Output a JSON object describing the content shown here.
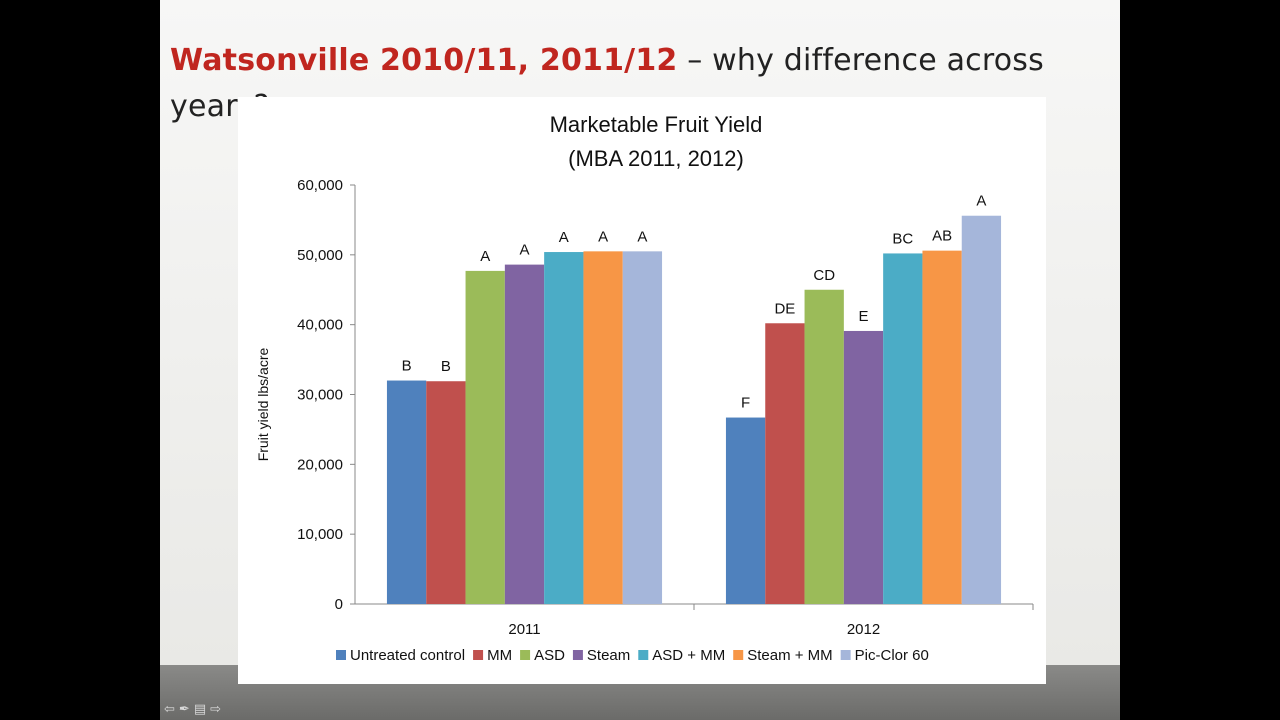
{
  "slide": {
    "title_highlight": "Watsonville 2010/11, 2011/12",
    "title_rest": " – why difference across years?"
  },
  "controls": {
    "prev_icon": "arrow-left-icon",
    "pen_icon": "pen-icon",
    "menu_icon": "menu-icon",
    "next_icon": "arrow-right-icon"
  },
  "chart_data": {
    "type": "bar",
    "title": "Marketable Fruit Yield",
    "subtitle": "(MBA 2011, 2012)",
    "ylabel": "Fruit yield lbs/acre",
    "xlabel": "",
    "ylim": [
      0,
      60000
    ],
    "yticks": [
      "0",
      "10,000",
      "20,000",
      "30,000",
      "40,000",
      "50,000",
      "60,000"
    ],
    "categories": [
      "2011",
      "2012"
    ],
    "legend_position": "bottom",
    "series": [
      {
        "name": "Untreated control",
        "color": "#4f81bd",
        "values": [
          32000,
          26700
        ],
        "labels": [
          "B",
          "F"
        ]
      },
      {
        "name": "MM",
        "color": "#c0504d",
        "values": [
          31900,
          40200
        ],
        "labels": [
          "B",
          "DE"
        ]
      },
      {
        "name": "ASD",
        "color": "#9bbb59",
        "values": [
          47700,
          45000
        ],
        "labels": [
          "A",
          "CD"
        ]
      },
      {
        "name": "Steam",
        "color": "#8064a2",
        "values": [
          48600,
          39100
        ],
        "labels": [
          "A",
          "E"
        ]
      },
      {
        "name": "ASD + MM",
        "color": "#4bacc6",
        "values": [
          50400,
          50200
        ],
        "labels": [
          "A",
          "BC"
        ]
      },
      {
        "name": "Steam + MM",
        "color": "#f79646",
        "values": [
          50500,
          50600
        ],
        "labels": [
          "A",
          "AB"
        ]
      },
      {
        "name": "Pic-Clor 60",
        "color": "#a5b6da",
        "values": [
          50500,
          55600
        ],
        "labels": [
          "A",
          "A"
        ]
      }
    ]
  }
}
